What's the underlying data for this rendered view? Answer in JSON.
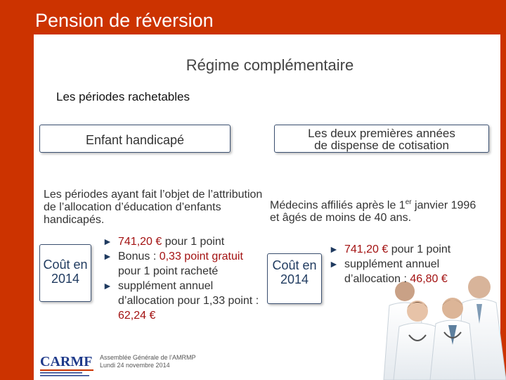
{
  "header": {
    "title": "Pension de réversion"
  },
  "subtitle": "Régime complémentaire",
  "section_heading": "Les périodes rachetables",
  "left": {
    "box_label": "Enfant handicapé",
    "description": "Les périodes ayant fait l’objet de l’attribution de l’allocation d’éducation d’enfants handicapés.",
    "cost_label_line1": "Coût en",
    "cost_label_line2": "2014",
    "bullets": [
      {
        "value": "741,20 €",
        "rest": " pour 1 point"
      },
      {
        "prefix": "Bonus : ",
        "value": "0,33 point gratuit",
        "rest": " pour 1 point racheté"
      },
      {
        "prefix": "supplément annuel d’allocation pour 1,33 point : ",
        "value": "62,24 €"
      }
    ]
  },
  "right": {
    "box_label_line1": "Les deux premières années",
    "box_label_line2": "de dispense de cotisation",
    "description_part1": "Médecins affiliés après le 1",
    "description_sup": "er",
    "description_part2": " janvier 1996",
    "description_line2": "et âgés de moins de 40 ans.",
    "cost_label_line1": "Coût en",
    "cost_label_line2": "2014",
    "bullets": [
      {
        "value": "741,20 €",
        "rest": " pour 1 point"
      },
      {
        "prefix": "supplément annuel d’allocation : ",
        "value": "46,80 €"
      }
    ]
  },
  "footer": {
    "logo_text": "CARMF",
    "line1": "Assemblée Générale de l’AMRMP",
    "line2": "Lundi 24 novembre 2014"
  },
  "colors": {
    "frame": "#cc3300",
    "value_red": "#a31212",
    "box_border": "#3a4f6f"
  },
  "icons": {
    "bullet": "triangle-right-icon",
    "photo": "doctors-photo"
  }
}
